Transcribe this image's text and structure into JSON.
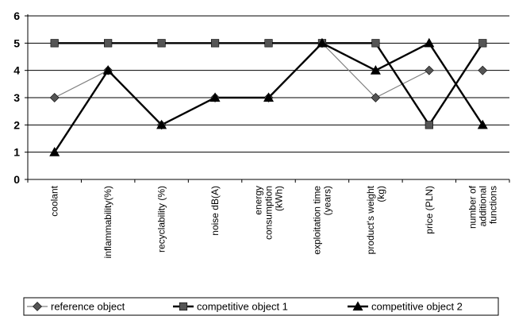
{
  "chart_data": {
    "type": "line",
    "categories": [
      [
        "coolant"
      ],
      [
        "inflammability(%)"
      ],
      [
        "recyclability (%)"
      ],
      [
        "noise dB(A)"
      ],
      [
        "energy",
        "consumption",
        "(kWh)"
      ],
      [
        "exploitation time",
        "(years)"
      ],
      [
        "product's weight",
        "(kg)"
      ],
      [
        "price (PLN)"
      ],
      [
        "number of",
        "additional",
        "functions"
      ]
    ],
    "series": [
      {
        "name": "reference object",
        "values": [
          3,
          4,
          2,
          3,
          3,
          5,
          3,
          4,
          4
        ],
        "marker": "diamond",
        "line_color": "#808080",
        "line_width": 1.2
      },
      {
        "name": "competitive object 1",
        "values": [
          5,
          5,
          5,
          5,
          5,
          5,
          5,
          2,
          5
        ],
        "marker": "square",
        "line_color": "#000000",
        "line_width": 2.4
      },
      {
        "name": "competitive object 2",
        "values": [
          1,
          4,
          2,
          3,
          3,
          5,
          4,
          5,
          2
        ],
        "marker": "triangle",
        "line_color": "#000000",
        "line_width": 2.4
      }
    ],
    "ylim": [
      0,
      6
    ],
    "yticks": [
      0,
      1,
      2,
      3,
      4,
      5,
      6
    ],
    "grid": true,
    "legend": "bottom",
    "title": "",
    "xlabel": "",
    "ylabel": ""
  }
}
